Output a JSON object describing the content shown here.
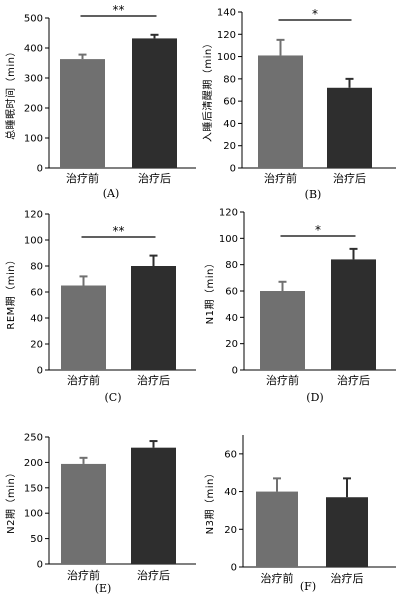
{
  "chart_data": [
    {
      "type": "bar",
      "panel": "(A)",
      "categories": [
        "治疗前",
        "治疗后"
      ],
      "values": [
        363,
        432
      ],
      "errors": [
        15,
        12
      ],
      "ylabel": "总睡眠时间（min）",
      "ylim": [
        0,
        500
      ],
      "yticks": [
        0,
        100,
        200,
        300,
        400,
        500
      ],
      "significance": "**",
      "colors": [
        "#707070",
        "#2e2e2e"
      ]
    },
    {
      "type": "bar",
      "panel": "(B)",
      "categories": [
        "治疗前",
        "治疗后"
      ],
      "values": [
        101,
        72
      ],
      "errors": [
        14,
        8
      ],
      "ylabel": "入睡后清醒期（min）",
      "ylim": [
        0,
        140
      ],
      "yticks": [
        0,
        20,
        40,
        60,
        80,
        100,
        120,
        140
      ],
      "significance": "*",
      "colors": [
        "#707070",
        "#2e2e2e"
      ]
    },
    {
      "type": "bar",
      "panel": "(C)",
      "categories": [
        "治疗前",
        "治疗后"
      ],
      "values": [
        65,
        80
      ],
      "errors": [
        7,
        8
      ],
      "ylabel": "REM期（min）",
      "ylim": [
        0,
        120
      ],
      "yticks": [
        0,
        20,
        40,
        60,
        80,
        100,
        120
      ],
      "significance": "**",
      "colors": [
        "#707070",
        "#2e2e2e"
      ]
    },
    {
      "type": "bar",
      "panel": "(D)",
      "categories": [
        "治疗前",
        "治疗后"
      ],
      "values": [
        60,
        84
      ],
      "errors": [
        7,
        8
      ],
      "ylabel": "N1期（min）",
      "ylim": [
        0,
        120
      ],
      "yticks": [
        0,
        20,
        40,
        60,
        80,
        100,
        120
      ],
      "significance": "*",
      "colors": [
        "#707070",
        "#2e2e2e"
      ]
    },
    {
      "type": "bar",
      "panel": "(E)",
      "categories": [
        "治疗前",
        "治疗后"
      ],
      "values": [
        197,
        229
      ],
      "errors": [
        12,
        13
      ],
      "ylabel": "N2期（min）",
      "ylim": [
        0,
        250
      ],
      "yticks": [
        0,
        50,
        100,
        150,
        200,
        250
      ],
      "significance": "",
      "colors": [
        "#707070",
        "#2e2e2e"
      ]
    },
    {
      "type": "bar",
      "panel": "(F)",
      "categories": [
        "治疗前",
        "治疗后"
      ],
      "values": [
        40,
        37
      ],
      "errors": [
        7,
        10
      ],
      "ylabel": "N3期（min）",
      "ylim": [
        0,
        70
      ],
      "yticks": [
        0,
        20,
        40,
        60
      ],
      "significance": "",
      "colors": [
        "#707070",
        "#2e2e2e"
      ]
    }
  ]
}
